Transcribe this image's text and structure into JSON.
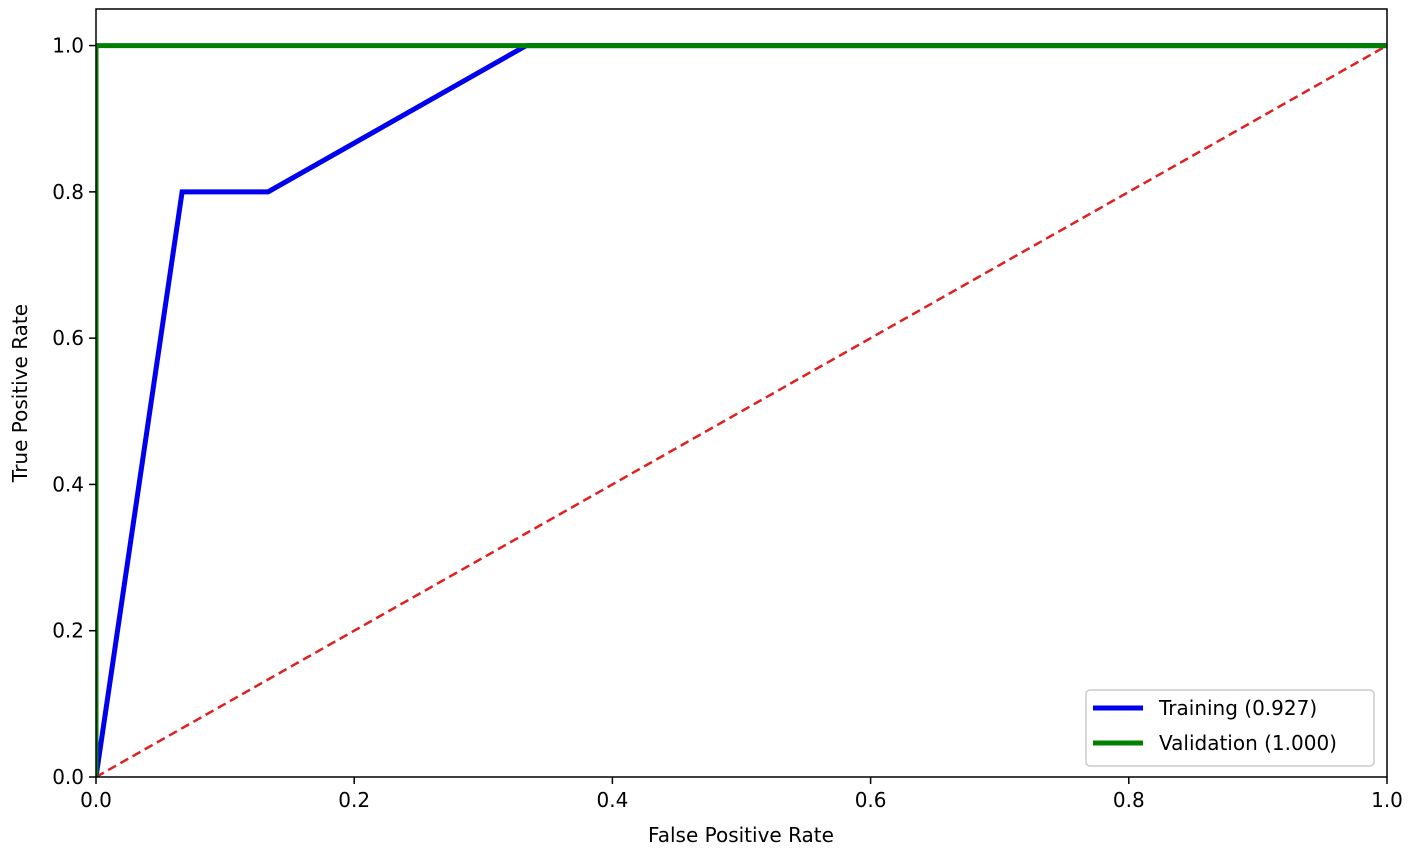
{
  "chart_data": {
    "type": "line",
    "title": "",
    "xlabel": "False Positive Rate",
    "ylabel": "True Positive Rate",
    "xlim": [
      0.0,
      1.0
    ],
    "ylim": [
      0.0,
      1.05
    ],
    "xticks": [
      "0.0",
      "0.2",
      "0.4",
      "0.6",
      "0.8",
      "1.0"
    ],
    "yticks": [
      "0.0",
      "0.2",
      "0.4",
      "0.6",
      "0.8",
      "1.0"
    ],
    "grid": false,
    "legend_position": "lower-right",
    "series": [
      {
        "name": "Training (0.927)",
        "color": "#0000ee",
        "style": "solid",
        "x": [
          0.0,
          0.0667,
          0.1333,
          0.3333,
          1.0
        ],
        "y": [
          0.0,
          0.8,
          0.8,
          1.0,
          1.0
        ]
      },
      {
        "name": "Validation (1.000)",
        "color": "#008000",
        "style": "solid",
        "x": [
          0.0,
          0.0,
          1.0
        ],
        "y": [
          0.0,
          1.0,
          1.0
        ]
      }
    ],
    "reference_line": {
      "color": "#e02020",
      "style": "dashed",
      "x": [
        0.0,
        1.0
      ],
      "y": [
        0.0,
        1.0
      ]
    }
  }
}
